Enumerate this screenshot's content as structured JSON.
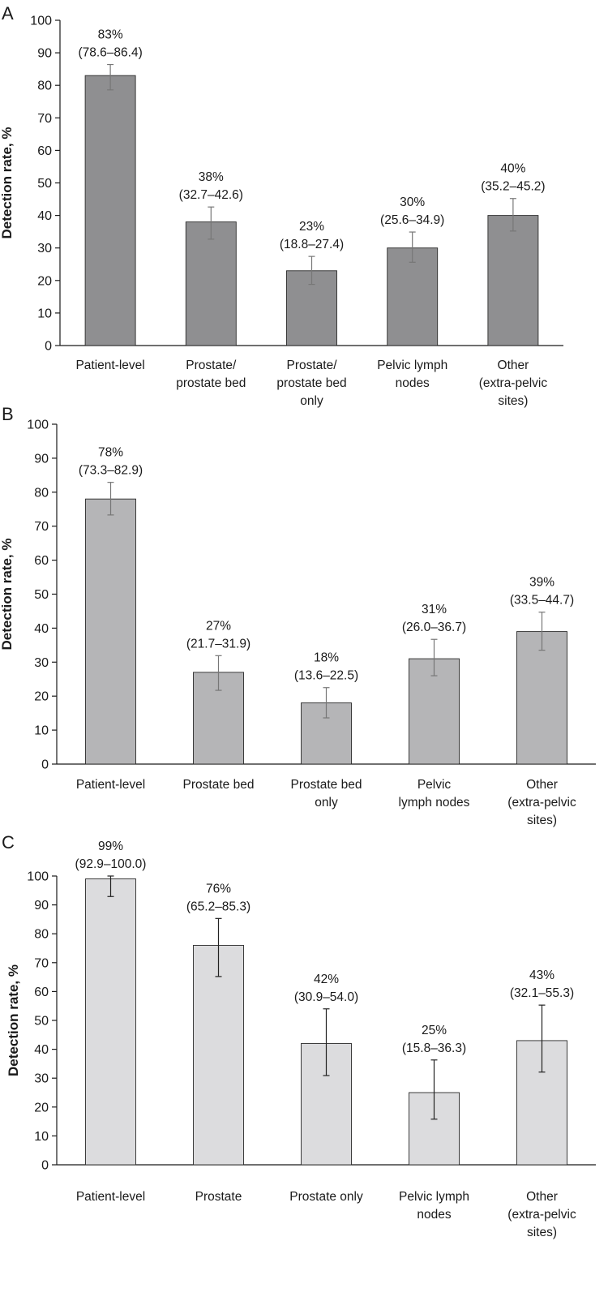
{
  "chart_data": [
    {
      "type": "bar",
      "panel": "A",
      "ylabel": "Detection rate, %",
      "ylim": [
        0,
        100
      ],
      "yticks": [
        0,
        10,
        20,
        30,
        40,
        50,
        60,
        70,
        80,
        90,
        100
      ],
      "bar_color": "#8f8f91",
      "error_color": "#777777",
      "categories": [
        [
          "Patient-level"
        ],
        [
          "Prostate/",
          "prostate bed"
        ],
        [
          "Prostate/",
          "prostate bed",
          "only"
        ],
        [
          "Pelvic lymph",
          "nodes"
        ],
        [
          "Other",
          "(extra-pelvic",
          "sites)"
        ]
      ],
      "values": [
        83,
        38,
        23,
        30,
        40
      ],
      "ci_low": [
        78.6,
        32.7,
        18.8,
        25.6,
        35.2
      ],
      "ci_high": [
        86.4,
        42.6,
        27.4,
        34.9,
        45.2
      ],
      "labels": [
        [
          "83%",
          "(78.6–86.4)"
        ],
        [
          "38%",
          "(32.7–42.6)"
        ],
        [
          "23%",
          "(18.8–27.4)"
        ],
        [
          "30%",
          "(25.6–34.9)"
        ],
        [
          "40%",
          "(35.2–45.2)"
        ]
      ]
    },
    {
      "type": "bar",
      "panel": "B",
      "ylabel": "Detection rate, %",
      "ylim": [
        0,
        100
      ],
      "yticks": [
        0,
        10,
        20,
        30,
        40,
        50,
        60,
        70,
        80,
        90,
        100
      ],
      "bar_color": "#b5b5b7",
      "error_color": "#777777",
      "categories": [
        [
          "Patient-level"
        ],
        [
          "Prostate bed"
        ],
        [
          "Prostate bed",
          "only"
        ],
        [
          "Pelvic",
          "lymph nodes"
        ],
        [
          "Other",
          "(extra-pelvic",
          "sites)"
        ]
      ],
      "values": [
        78,
        27,
        18,
        31,
        39
      ],
      "ci_low": [
        73.3,
        21.7,
        13.6,
        26.0,
        33.5
      ],
      "ci_high": [
        82.9,
        31.9,
        22.5,
        36.7,
        44.7
      ],
      "labels": [
        [
          "78%",
          "(73.3–82.9)"
        ],
        [
          "27%",
          "(21.7–31.9)"
        ],
        [
          "18%",
          "(13.6–22.5)"
        ],
        [
          "31%",
          "(26.0–36.7)"
        ],
        [
          "39%",
          "(33.5–44.7)"
        ]
      ]
    },
    {
      "type": "bar",
      "panel": "C",
      "ylabel": "Detection rate, %",
      "ylim": [
        0,
        100
      ],
      "yticks": [
        0,
        10,
        20,
        30,
        40,
        50,
        60,
        70,
        80,
        90,
        100
      ],
      "bar_color": "#dcdcde",
      "error_color": "#222222",
      "categories": [
        [
          "Patient-level"
        ],
        [
          "Prostate"
        ],
        [
          "Prostate only"
        ],
        [
          "Pelvic lymph",
          "nodes"
        ],
        [
          "Other",
          "(extra-pelvic",
          "sites)"
        ]
      ],
      "values": [
        99,
        76,
        42,
        25,
        43
      ],
      "ci_low": [
        92.9,
        65.2,
        30.9,
        15.8,
        32.1
      ],
      "ci_high": [
        100.0,
        85.3,
        54.0,
        36.3,
        55.3
      ],
      "labels": [
        [
          "99%",
          "(92.9–100.0)"
        ],
        [
          "76%",
          "(65.2–85.3)"
        ],
        [
          "42%",
          "(30.9–54.0)"
        ],
        [
          "25%",
          "(15.8–36.3)"
        ],
        [
          "43%",
          "(32.1–55.3)"
        ]
      ]
    }
  ]
}
